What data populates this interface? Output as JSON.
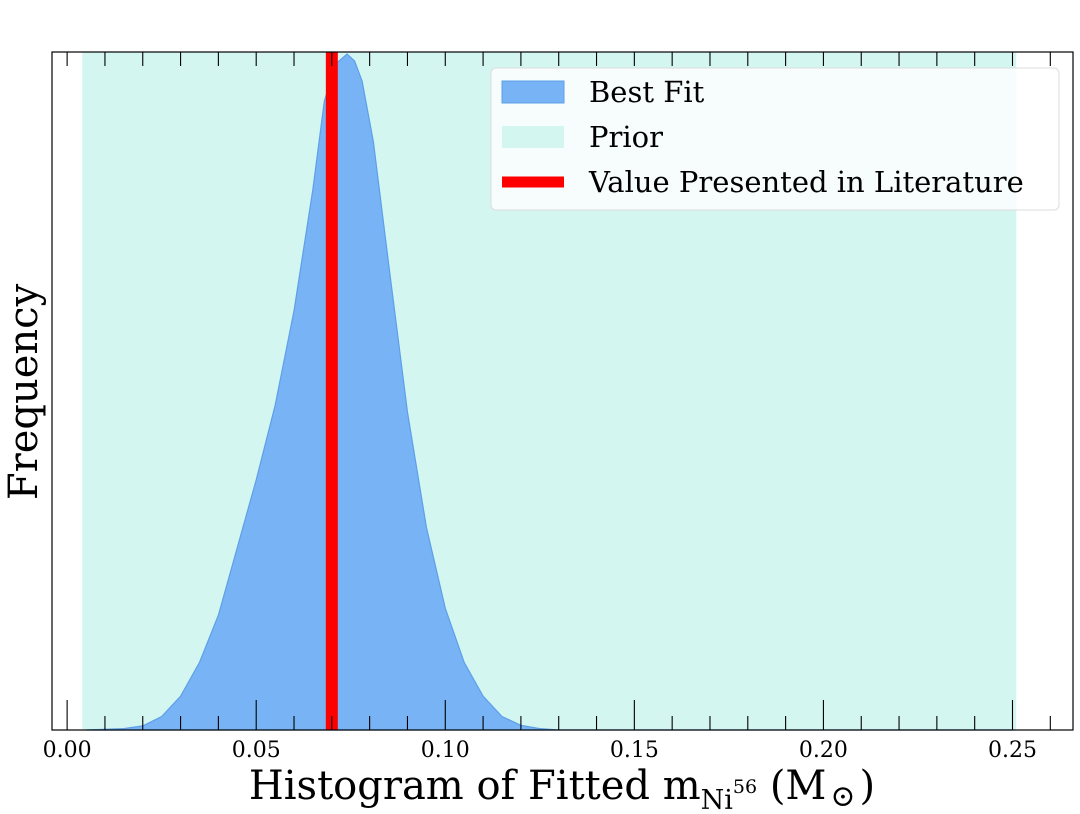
{
  "chart_data": {
    "type": "area",
    "xlabel": {
      "prefix": "Histogram of Fitted m",
      "subscript_base": "Ni",
      "superscript": "56",
      "unit_open": " (M",
      "unit_symbol": "⊙",
      "unit_close": ")"
    },
    "ylabel": "Frequency",
    "xlim": [
      -0.004,
      0.266
    ],
    "ylim": [
      0,
      1
    ],
    "x_ticks": [
      0.0,
      0.05,
      0.1,
      0.15,
      0.2,
      0.25
    ],
    "x_tick_labels": [
      "0.00",
      "0.05",
      "0.10",
      "0.15",
      "0.20",
      "0.25"
    ],
    "x_minor_step": 0.01,
    "grid": false,
    "legend_placement": "top-right",
    "series": [
      {
        "name": "Best Fit",
        "kind": "density",
        "color": "#78b3f5",
        "edge_color": "#5e9fe8",
        "x": [
          0.005,
          0.015,
          0.02,
          0.025,
          0.03,
          0.035,
          0.04,
          0.045,
          0.05,
          0.055,
          0.06,
          0.065,
          0.068,
          0.071,
          0.074,
          0.076,
          0.078,
          0.081,
          0.085,
          0.09,
          0.095,
          0.1,
          0.105,
          0.11,
          0.115,
          0.12,
          0.125,
          0.13,
          0.14,
          0.15,
          0.25
        ],
        "y": [
          0.0,
          0.002,
          0.006,
          0.02,
          0.05,
          0.1,
          0.17,
          0.27,
          0.37,
          0.48,
          0.62,
          0.8,
          0.93,
          0.985,
          1.0,
          0.99,
          0.96,
          0.87,
          0.69,
          0.47,
          0.3,
          0.18,
          0.1,
          0.05,
          0.02,
          0.007,
          0.002,
          0.0,
          0.0,
          0.0,
          0.0
        ]
      },
      {
        "name": "Prior",
        "kind": "span",
        "color": "#d3f6f1",
        "x_range": [
          0.004,
          0.251
        ]
      },
      {
        "name": "Value Presented in Literature",
        "kind": "vline",
        "color": "#ff0000",
        "x": 0.07
      }
    ]
  }
}
